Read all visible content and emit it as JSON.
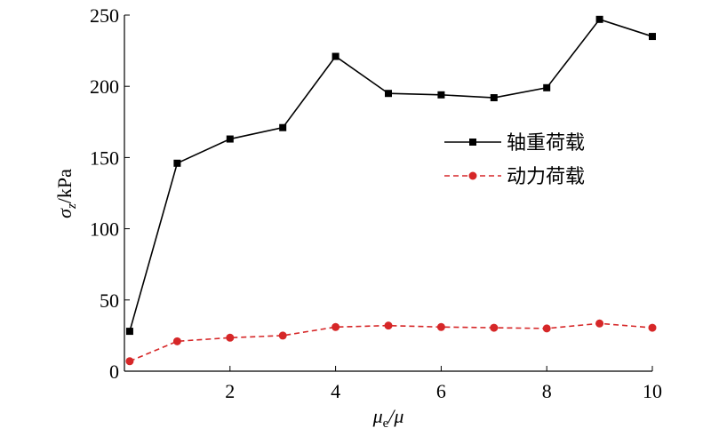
{
  "chart_data": {
    "type": "line",
    "x": [
      0.1,
      1,
      2,
      3,
      4,
      5,
      6,
      7,
      8,
      9,
      10
    ],
    "series": [
      {
        "name": "轴重荷载",
        "color": "#000000",
        "marker": "square",
        "dash": "solid",
        "values": [
          28,
          146,
          163,
          171,
          221,
          195,
          194,
          192,
          199,
          247,
          235
        ]
      },
      {
        "name": "动力荷载",
        "color": "#d62728",
        "marker": "circle",
        "dash": "dashed",
        "values": [
          7,
          21,
          23.5,
          25,
          31,
          32,
          31,
          30.5,
          30,
          33.5,
          30.5
        ]
      }
    ],
    "xlim": [
      0,
      10
    ],
    "xticks": [
      2,
      4,
      6,
      8,
      10
    ],
    "ylim": [
      0,
      250
    ],
    "yticks": [
      0,
      50,
      100,
      150,
      200,
      250
    ],
    "xlabel": {
      "symbol": "μ",
      "subscript": "e",
      "rest": "/μ"
    },
    "ylabel": {
      "symbol": "σ",
      "subscript": "z",
      "rest": "/kPa"
    },
    "legend": "right"
  }
}
